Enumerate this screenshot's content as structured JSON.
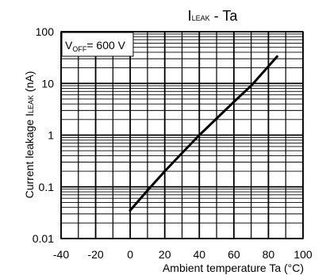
{
  "chart_data": {
    "type": "line",
    "title": {
      "symbol": "I",
      "sub": "LEAK",
      "rest": " - Ta"
    },
    "xlabel": "Ambient temperature Ta (°C)",
    "ylabel": {
      "main": "Current leakage I",
      "sub": "LEAK",
      "unit": " (nA)"
    },
    "annotation": {
      "symbol": "V",
      "sub": "OFF",
      "rest": "= 600 V"
    },
    "x_axis": {
      "min": -40,
      "max": 100,
      "ticks": [
        -40,
        -20,
        0,
        20,
        40,
        60,
        80,
        100
      ],
      "tick_labels": [
        "-40",
        "-20",
        "0",
        "20",
        "40",
        "60",
        "80",
        "100"
      ]
    },
    "y_axis": {
      "scale": "log",
      "min": 0.01,
      "max": 100,
      "ticks": [
        0.01,
        0.1,
        1,
        10,
        100
      ],
      "tick_labels": [
        "0.01",
        "0.1",
        "1",
        "10",
        "100"
      ]
    },
    "grid": true,
    "series": [
      {
        "x": [
          0,
          10,
          20,
          30,
          40,
          50,
          60,
          70,
          85
        ],
        "y": [
          0.035,
          0.085,
          0.2,
          0.45,
          1.0,
          2.1,
          4.4,
          9.0,
          33
        ]
      }
    ],
    "colors": {
      "line": "#000000",
      "grid": "#000000",
      "background": "#ffffff"
    }
  }
}
